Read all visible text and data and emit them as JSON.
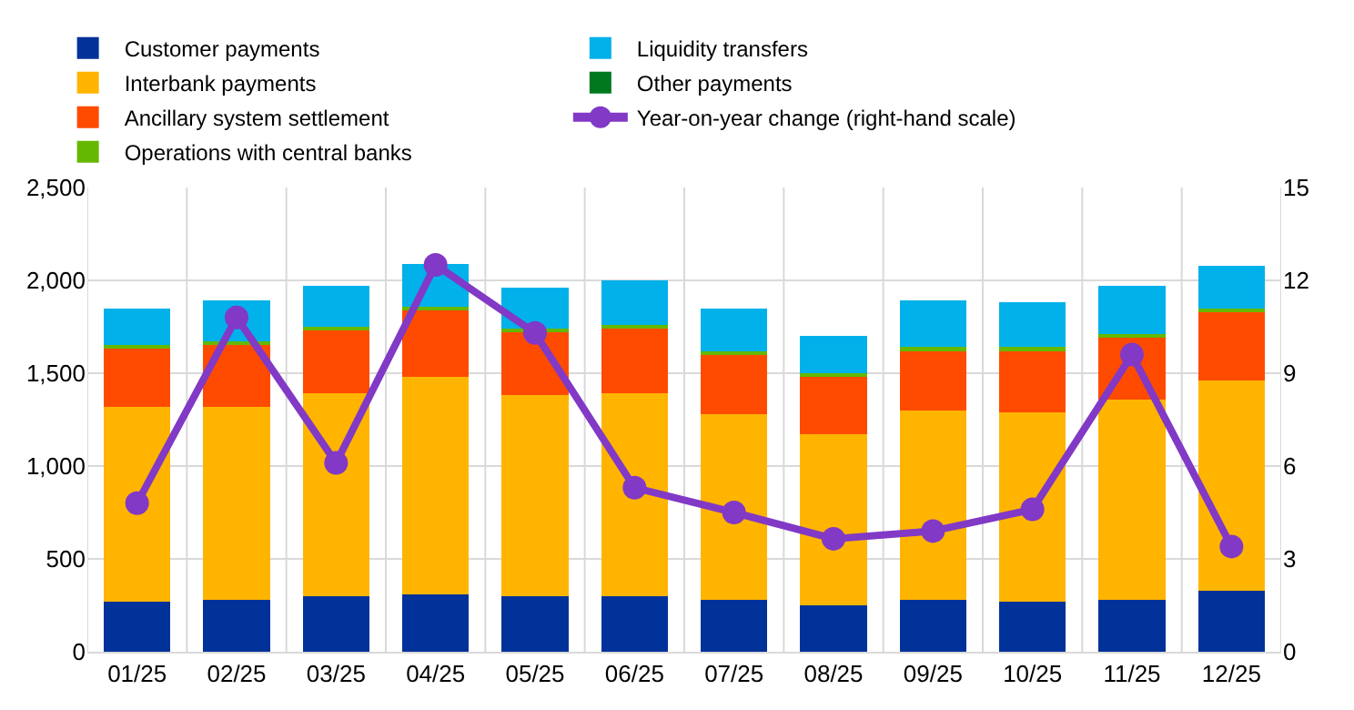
{
  "chart_data": {
    "type": "bar",
    "stacked": true,
    "categories": [
      "01/25",
      "02/25",
      "03/25",
      "04/25",
      "05/25",
      "06/25",
      "07/25",
      "08/25",
      "09/25",
      "10/25",
      "11/25",
      "12/25"
    ],
    "series": [
      {
        "name": "Customer payments",
        "color": "#003299",
        "values": [
          270,
          280,
          300,
          310,
          300,
          300,
          280,
          250,
          280,
          270,
          280,
          330
        ]
      },
      {
        "name": "Interbank payments",
        "color": "#ffb400",
        "values": [
          1050,
          1040,
          1090,
          1170,
          1080,
          1090,
          1000,
          920,
          1020,
          1020,
          1080,
          1130
        ]
      },
      {
        "name": "Ancillary system settlement",
        "color": "#ff4b00",
        "values": [
          310,
          330,
          340,
          360,
          340,
          350,
          320,
          310,
          320,
          330,
          330,
          370
        ]
      },
      {
        "name": "Operations with central banks",
        "color": "#65b800",
        "values": [
          20,
          20,
          20,
          20,
          20,
          20,
          20,
          20,
          20,
          20,
          20,
          20
        ]
      },
      {
        "name": "Liquidity transfers",
        "color": "#00b1ea",
        "values": [
          200,
          220,
          220,
          230,
          220,
          240,
          230,
          200,
          250,
          240,
          260,
          230
        ]
      },
      {
        "name": "Other payments",
        "color": "#00781e",
        "values": [
          0,
          0,
          0,
          0,
          0,
          0,
          0,
          0,
          0,
          0,
          0,
          0
        ]
      },
      {
        "name": "Year-on-year change (right-hand scale)",
        "color": "#8139c6",
        "type": "line",
        "axis": "y2",
        "marker": "circle",
        "values": [
          4.8,
          10.8,
          6.1,
          12.5,
          10.3,
          5.3,
          4.5,
          3.65,
          3.9,
          4.6,
          9.6,
          3.4
        ]
      }
    ],
    "ylim": [
      0,
      2500
    ],
    "yticks": [
      {
        "value": 0,
        "label": "0"
      },
      {
        "value": 500,
        "label": "500"
      },
      {
        "value": 1000,
        "label": "1,000"
      },
      {
        "value": 1500,
        "label": "1,500"
      },
      {
        "value": 2000,
        "label": "2,000"
      },
      {
        "value": 2500,
        "label": "2,500"
      }
    ],
    "y2lim": [
      0,
      15
    ],
    "y2ticks": [
      0,
      3,
      6,
      9,
      12,
      15
    ],
    "grid": true,
    "legend": "top left"
  }
}
